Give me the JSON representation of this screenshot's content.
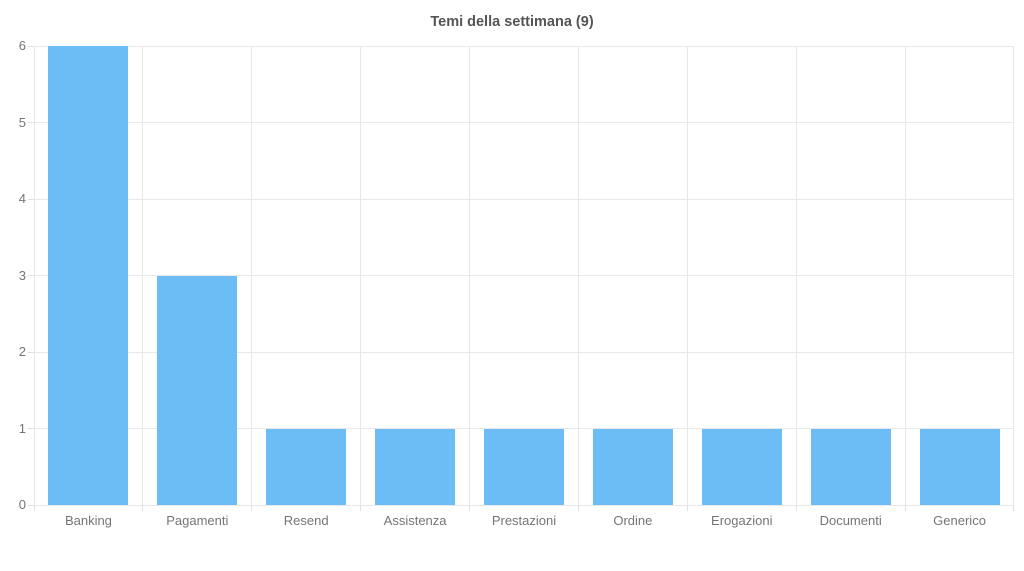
{
  "chart_data": {
    "type": "bar",
    "title": "Temi della settimana (9)",
    "categories": [
      "Banking",
      "Pagamenti",
      "Resend",
      "Assistenza",
      "Prestazioni",
      "Ordine",
      "Erogazioni",
      "Documenti",
      "Generico"
    ],
    "values": [
      6,
      3,
      1,
      1,
      1,
      1,
      1,
      1,
      1
    ],
    "xlabel": "",
    "ylabel": "",
    "ylim": [
      0,
      6
    ],
    "y_ticks": [
      0,
      1,
      2,
      3,
      4,
      5,
      6
    ],
    "grid": true,
    "legend_position": "none",
    "colors": {
      "bar": "#6CBDF6",
      "grid": "#E8E8E8",
      "tick": "#E0E0E0",
      "axis_label": "#757575",
      "title": "#555555",
      "background": "#FFFFFF"
    }
  }
}
